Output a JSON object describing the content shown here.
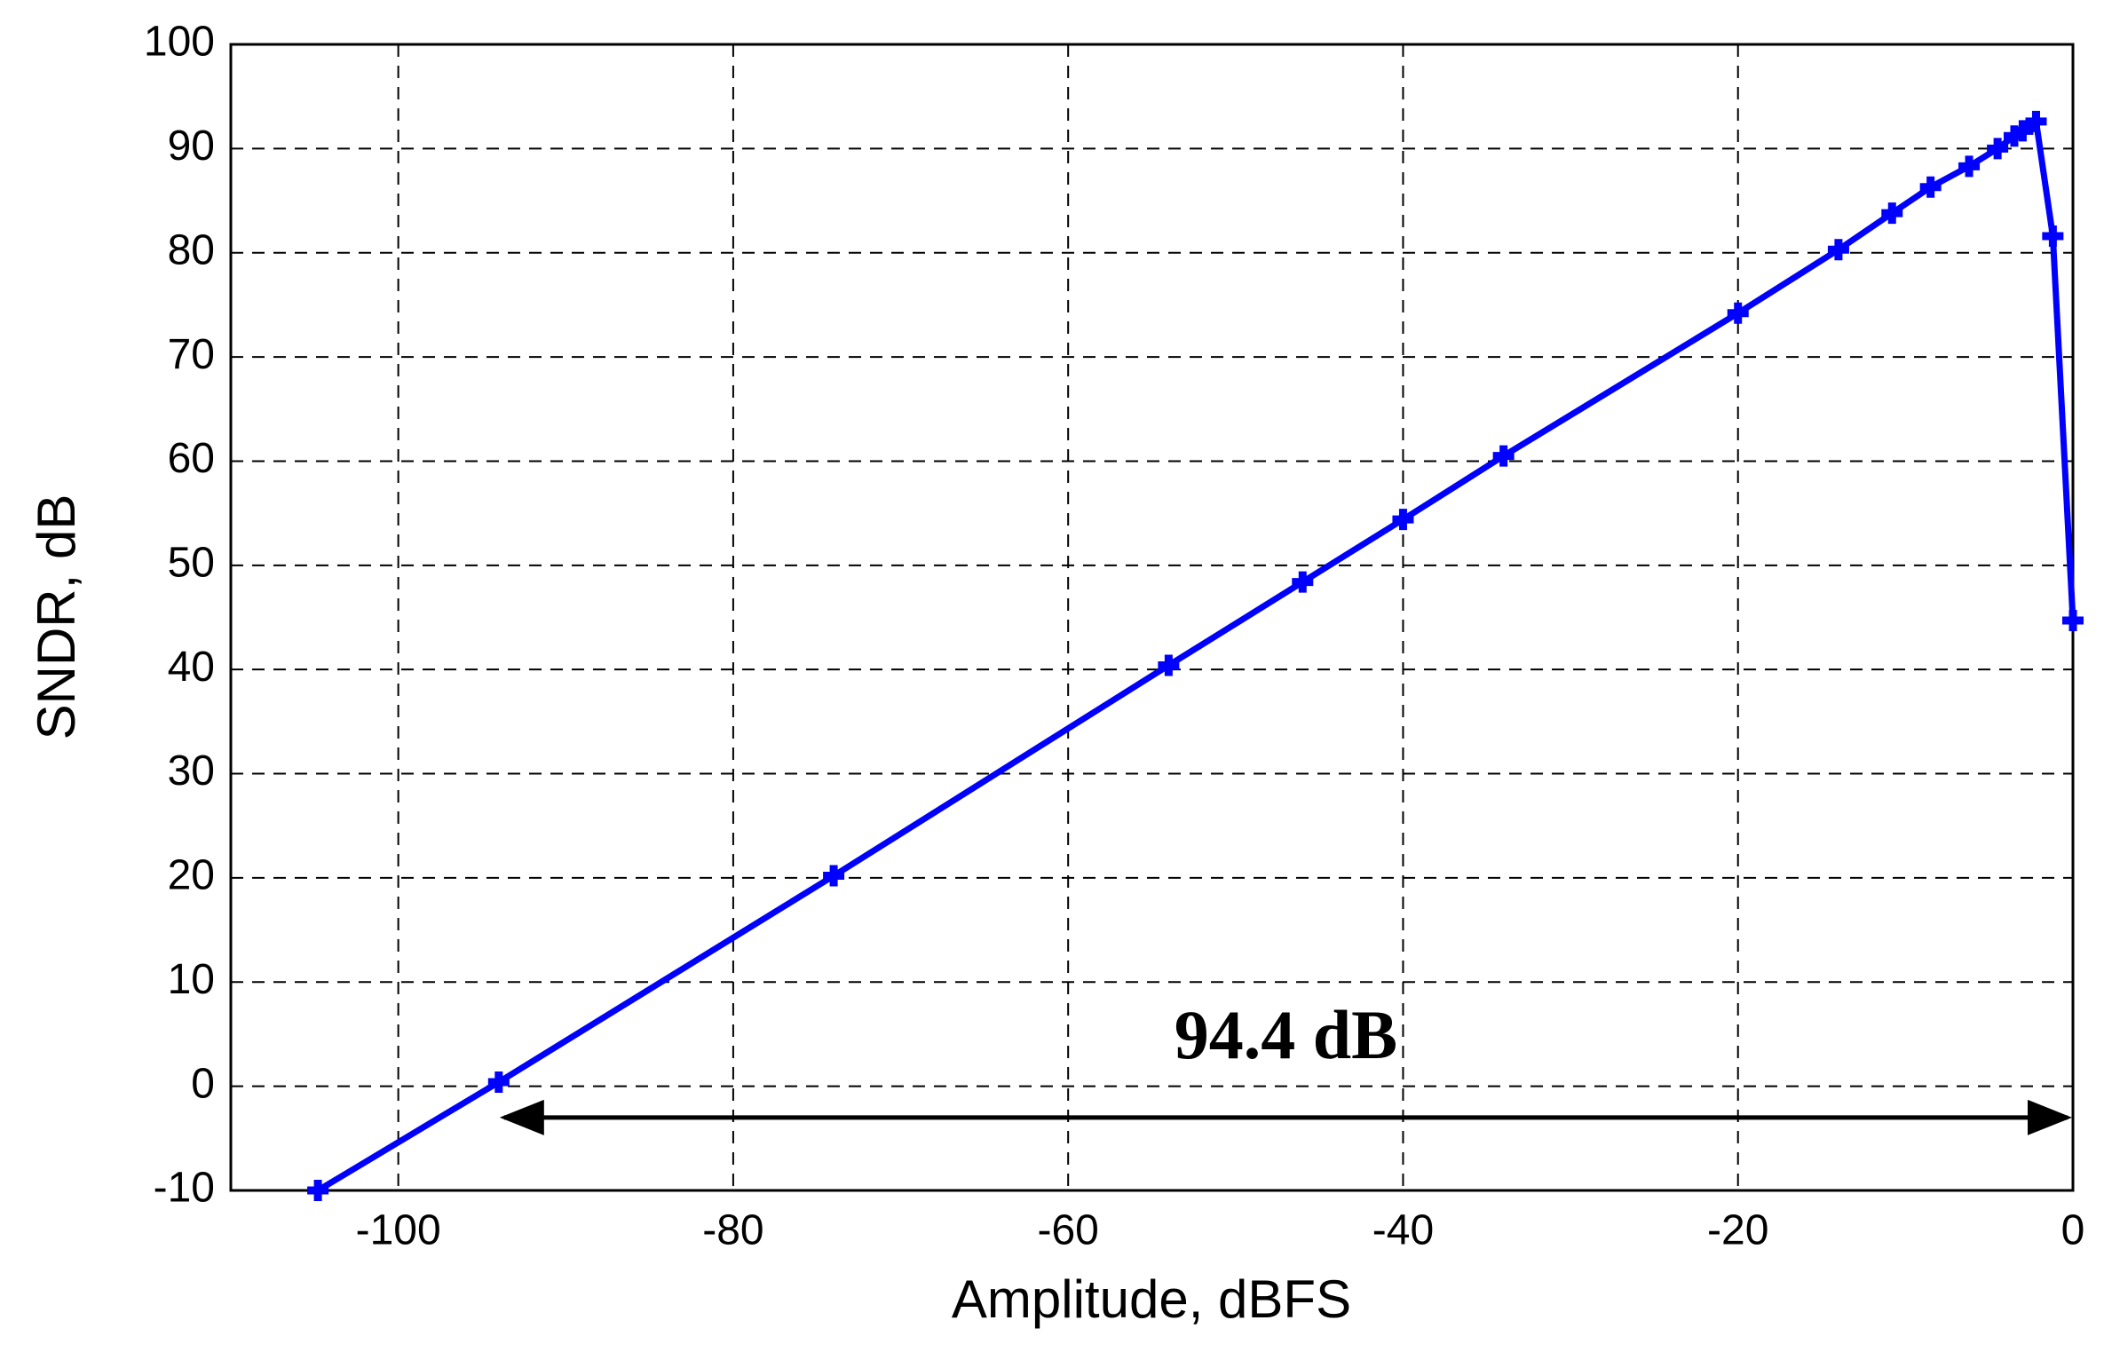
{
  "chart_data": {
    "type": "line",
    "xlabel": "Amplitude, dBFS",
    "ylabel": "SNDR, dB",
    "x": [
      -104.8,
      -94,
      -74,
      -54,
      -46,
      -40,
      -34,
      -20,
      -14,
      -10.8,
      -8.5,
      -6.2,
      -4.5,
      -3.5,
      -3,
      -2.2,
      -1.2,
      0
    ],
    "series": [
      {
        "color": "#0000ff",
        "values": [
          -10,
          0.4,
          20.2,
          40.4,
          48.4,
          54.4,
          60.5,
          74.2,
          80.3,
          83.8,
          86.3,
          88.3,
          90,
          91.2,
          91.7,
          92.6,
          81.6,
          44.7
        ]
      }
    ],
    "xlim": [
      -110,
      0
    ],
    "ylim": [
      -10,
      100
    ],
    "xticks": [
      -100,
      -80,
      -60,
      -40,
      -20,
      0
    ],
    "yticks": [
      -10,
      0,
      10,
      20,
      30,
      40,
      50,
      60,
      70,
      80,
      90,
      100
    ],
    "grid": true,
    "annotation": {
      "text": "94.4 dB",
      "x": [
        -94,
        0
      ],
      "y": -3
    }
  }
}
